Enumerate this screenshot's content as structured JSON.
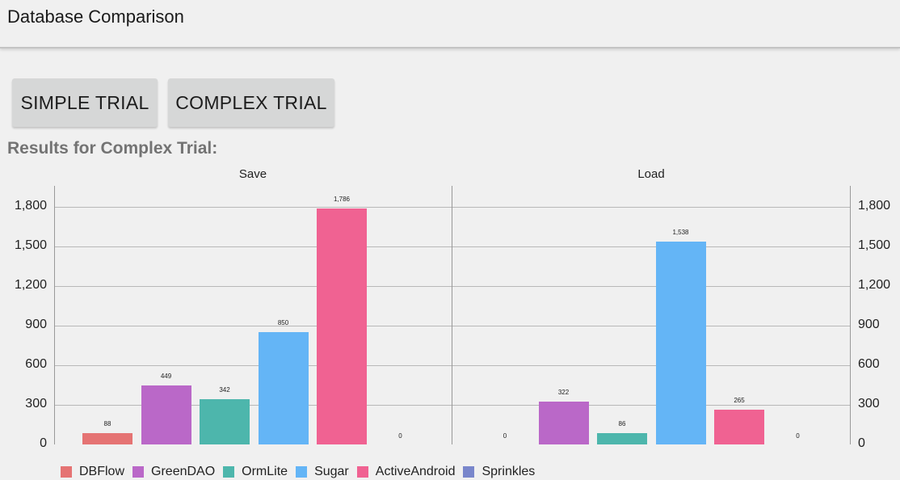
{
  "appbar": {
    "title": "Database Comparison"
  },
  "buttons": {
    "simple": "SIMPLE TRIAL",
    "complex": "COMPLEX TRIAL"
  },
  "results_label": "Results for Complex Trial:",
  "chart_data": {
    "type": "bar",
    "title": "Results for Complex Trial",
    "subcharts": [
      "Save",
      "Load"
    ],
    "categories": [
      "Save",
      "Load"
    ],
    "series": [
      {
        "name": "DBFlow",
        "color": "#e57373",
        "values": [
          88,
          0
        ]
      },
      {
        "name": "GreenDAO",
        "color": "#ba68c8",
        "values": [
          449,
          322
        ]
      },
      {
        "name": "OrmLite",
        "color": "#4db6ac",
        "values": [
          342,
          86
        ]
      },
      {
        "name": "Sugar",
        "color": "#64b5f6",
        "values": [
          850,
          1538
        ]
      },
      {
        "name": "ActiveAndroid",
        "color": "#f06292",
        "values": [
          1786,
          265
        ]
      },
      {
        "name": "Sprinkles",
        "color": "#7986cb",
        "values": [
          0,
          0
        ]
      }
    ],
    "value_labels": {
      "Save": [
        "88",
        "449",
        "342",
        "850",
        "1,786",
        "0"
      ],
      "Load": [
        "0",
        "322",
        "86",
        "1,538",
        "265",
        "0"
      ]
    },
    "yticks": [
      "0",
      "300",
      "600",
      "900",
      "1,200",
      "1,500",
      "1,800"
    ],
    "ylim": [
      0,
      1960
    ],
    "xlabel": "",
    "ylabel": "",
    "grid": true,
    "legend_position": "bottom"
  }
}
